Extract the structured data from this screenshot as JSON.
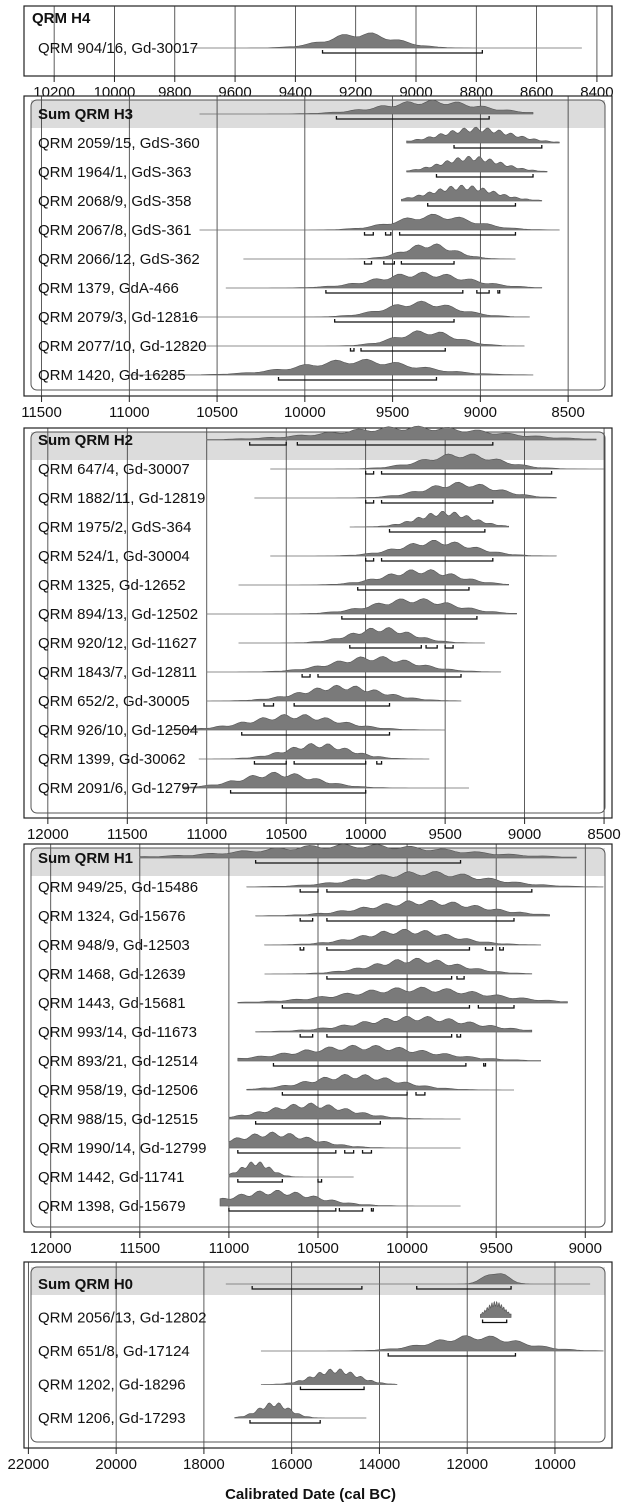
{
  "xlabel": "Calibrated Date (cal BC)",
  "chart_data": [
    {
      "type": "area",
      "title": "QRM H4",
      "xlim": [
        10300,
        8350
      ],
      "x_ticks": [
        10200,
        10000,
        9800,
        9600,
        9400,
        9200,
        9000,
        8800,
        8600,
        8400
      ],
      "rows": [
        {
          "label": "QRM 904/16, Gd-30017",
          "peak": 9180,
          "width": 110,
          "tail": [
            9750,
            8450
          ],
          "ranges": [
            [
              9310,
              8780
            ]
          ],
          "sum": false
        }
      ]
    },
    {
      "type": "area",
      "title": "Sum QRM H3",
      "xlim": [
        11600,
        8250
      ],
      "x_ticks": [
        11500,
        11000,
        10500,
        10000,
        9500,
        9000,
        8500
      ],
      "rows": [
        {
          "label": "Sum QRM H3",
          "peak": 9280,
          "width": 280,
          "tail": [
            10600,
            8700
          ],
          "ranges": [
            [
              9820,
              8950
            ]
          ],
          "sum": true
        },
        {
          "label": "QRM 2059/15, GdS-360",
          "peak": 9020,
          "width": 200,
          "tail": [
            9420,
            8550
          ],
          "ranges": [
            [
              9150,
              8650
            ]
          ],
          "sum": false
        },
        {
          "label": "QRM 1964/1, GdS-363",
          "peak": 9050,
          "width": 170,
          "tail": [
            9420,
            8620
          ],
          "ranges": [
            [
              9250,
              8700
            ]
          ],
          "sum": false
        },
        {
          "label": "QRM 2068/9, GdS-358",
          "peak": 9100,
          "width": 180,
          "tail": [
            9450,
            8650
          ],
          "ranges": [
            [
              9300,
              8800
            ]
          ],
          "sum": false
        },
        {
          "label": "QRM 2067/8, GdS-361",
          "peak": 9260,
          "width": 220,
          "tail": [
            10600,
            8550
          ],
          "ranges": [
            [
              9660,
              9610
            ],
            [
              9540,
              9510
            ],
            [
              9460,
              8800
            ]
          ],
          "sum": false
        },
        {
          "label": "QRM 2066/12, GdS-362",
          "peak": 9290,
          "width": 140,
          "tail": [
            10350,
            8800
          ],
          "ranges": [
            [
              9660,
              9620
            ],
            [
              9550,
              9490
            ],
            [
              9450,
              9150
            ]
          ],
          "sum": false
        },
        {
          "label": "QRM 1379, GdA-466",
          "peak": 9330,
          "width": 260,
          "tail": [
            10450,
            8650
          ],
          "ranges": [
            [
              9880,
              9100
            ],
            [
              9020,
              8950
            ],
            [
              8900,
              8890
            ]
          ],
          "sum": false
        },
        {
          "label": "QRM 2079/3, Gd-12816",
          "peak": 9340,
          "width": 200,
          "tail": [
            10700,
            8720
          ],
          "ranges": [
            [
              9830,
              9150
            ]
          ],
          "sum": false
        },
        {
          "label": "QRM 2077/10, Gd-12820",
          "peak": 9310,
          "width": 170,
          "tail": [
            10650,
            8750
          ],
          "ranges": [
            [
              9740,
              9720
            ],
            [
              9680,
              9200
            ]
          ],
          "sum": false
        },
        {
          "label": "QRM 1420, Gd-16285",
          "peak": 9700,
          "width": 330,
          "tail": [
            11000,
            8700
          ],
          "ranges": [
            [
              10150,
              9250
            ]
          ],
          "sum": false
        }
      ]
    },
    {
      "type": "area",
      "title": "Sum QRM H2",
      "xlim": [
        12150,
        8450
      ],
      "x_ticks": [
        12000,
        11500,
        11000,
        10500,
        10000,
        9500,
        9000,
        8500
      ],
      "rows": [
        {
          "label": "Sum QRM H2",
          "peak": 9700,
          "width": 500,
          "tail": [
            11000,
            8550
          ],
          "ranges": [
            [
              10730,
              10500
            ],
            [
              10430,
              9200
            ]
          ],
          "sum": true
        },
        {
          "label": "QRM 647/4, Gd-30007",
          "peak": 9400,
          "width": 240,
          "tail": [
            10600,
            8500
          ],
          "ranges": [
            [
              10000,
              9950
            ],
            [
              9900,
              8830
            ]
          ],
          "sum": false
        },
        {
          "label": "QRM 1882/11, Gd-12819",
          "peak": 9400,
          "width": 230,
          "tail": [
            10700,
            8800
          ],
          "ranges": [
            [
              10000,
              9950
            ],
            [
              9900,
              9200
            ]
          ],
          "sum": false
        },
        {
          "label": "QRM 1975/2, GdS-364",
          "peak": 9500,
          "width": 170,
          "tail": [
            10100,
            9100
          ],
          "ranges": [
            [
              9850,
              9250
            ]
          ],
          "sum": false
        },
        {
          "label": "QRM 524/1, Gd-30004",
          "peak": 9550,
          "width": 230,
          "tail": [
            10600,
            8800
          ],
          "ranges": [
            [
              10000,
              9950
            ],
            [
              9900,
              9200
            ]
          ],
          "sum": false
        },
        {
          "label": "QRM 1325, Gd-12652",
          "peak": 9650,
          "width": 230,
          "tail": [
            10800,
            9100
          ],
          "ranges": [
            [
              10050,
              9350
            ]
          ],
          "sum": false
        },
        {
          "label": "QRM 894/13, Gd-12502",
          "peak": 9700,
          "width": 260,
          "tail": [
            11000,
            9050
          ],
          "ranges": [
            [
              10150,
              9300
            ]
          ],
          "sum": false
        },
        {
          "label": "QRM 920/12, Gd-11627",
          "peak": 9900,
          "width": 190,
          "tail": [
            10800,
            9250
          ],
          "ranges": [
            [
              10100,
              9650
            ],
            [
              9620,
              9550
            ],
            [
              9500,
              9450
            ]
          ],
          "sum": false
        },
        {
          "label": "QRM 1843/7, Gd-12811",
          "peak": 9950,
          "width": 260,
          "tail": [
            11000,
            9150
          ],
          "ranges": [
            [
              10400,
              10350
            ],
            [
              10300,
              9400
            ]
          ],
          "sum": false
        },
        {
          "label": "QRM 652/2, Gd-30005",
          "peak": 10150,
          "width": 250,
          "tail": [
            11000,
            9400
          ],
          "ranges": [
            [
              10640,
              10580
            ],
            [
              10450,
              9850
            ]
          ],
          "sum": false
        },
        {
          "label": "QRM 926/10, Gd-12504",
          "peak": 10450,
          "width": 280,
          "tail": [
            11250,
            9500
          ],
          "ranges": [
            [
              10780,
              9850
            ]
          ],
          "sum": false
        },
        {
          "label": "QRM 1399, Gd-30062",
          "peak": 10300,
          "width": 200,
          "tail": [
            11050,
            9600
          ],
          "ranges": [
            [
              10700,
              10500
            ],
            [
              10450,
              10000
            ],
            [
              9930,
              9900
            ]
          ],
          "sum": false
        },
        {
          "label": "QRM 2091/6, Gd-12797",
          "peak": 10550,
          "width": 240,
          "tail": [
            11150,
            9350
          ],
          "ranges": [
            [
              10850,
              10000
            ]
          ],
          "sum": false
        }
      ]
    },
    {
      "type": "area",
      "title": "Sum QRM H1",
      "xlim": [
        12150,
        8850
      ],
      "x_ticks": [
        12000,
        11500,
        11000,
        10500,
        10000,
        9500,
        9000
      ],
      "rows": [
        {
          "label": "Sum QRM H1",
          "peak": 10300,
          "width": 550,
          "tail": [
            11500,
            9050
          ],
          "ranges": [
            [
              10850,
              9700
            ]
          ],
          "sum": true
        },
        {
          "label": "QRM 949/25, Gd-15486",
          "peak": 9900,
          "width": 340,
          "tail": [
            10900,
            8900
          ],
          "ranges": [
            [
              10600,
              10500
            ],
            [
              10450,
              9300
            ]
          ],
          "sum": false
        },
        {
          "label": "QRM 1324, Gd-15676",
          "peak": 9900,
          "width": 320,
          "tail": [
            10850,
            9200
          ],
          "ranges": [
            [
              10600,
              10530
            ],
            [
              10450,
              9400
            ]
          ],
          "sum": false
        },
        {
          "label": "QRM 948/9, Gd-12503",
          "peak": 10000,
          "width": 250,
          "tail": [
            10800,
            9250
          ],
          "ranges": [
            [
              10600,
              10580
            ],
            [
              10450,
              9650
            ],
            [
              9560,
              9520
            ],
            [
              9480,
              9460
            ]
          ],
          "sum": false
        },
        {
          "label": "QRM 1468, Gd-12639",
          "peak": 9950,
          "width": 240,
          "tail": [
            10800,
            9300
          ],
          "ranges": [
            [
              10450,
              9750
            ],
            [
              9720,
              9680
            ]
          ],
          "sum": false
        },
        {
          "label": "QRM 1443, Gd-15681",
          "peak": 9950,
          "width": 400,
          "tail": [
            10950,
            9100
          ],
          "ranges": [
            [
              10700,
              9650
            ],
            [
              9600,
              9400
            ]
          ],
          "sum": false
        },
        {
          "label": "QRM 993/14, Gd-11673",
          "peak": 9950,
          "width": 320,
          "tail": [
            10850,
            9300
          ],
          "ranges": [
            [
              10600,
              10530
            ],
            [
              10450,
              9750
            ],
            [
              9720,
              9700
            ]
          ],
          "sum": false
        },
        {
          "label": "QRM 893/21, Gd-12514",
          "peak": 10250,
          "width": 380,
          "tail": [
            10950,
            9250
          ],
          "ranges": [
            [
              10750,
              9670
            ],
            [
              9570,
              9560
            ]
          ],
          "sum": false
        },
        {
          "label": "QRM 958/19, Gd-12506",
          "peak": 10300,
          "width": 250,
          "tail": [
            10900,
            9400
          ],
          "ranges": [
            [
              10700,
              10000
            ],
            [
              9950,
              9900
            ]
          ],
          "sum": false
        },
        {
          "label": "QRM 988/15, Gd-12515",
          "peak": 10550,
          "width": 230,
          "tail": [
            11000,
            9700
          ],
          "ranges": [
            [
              10850,
              10150
            ]
          ],
          "sum": false
        },
        {
          "label": "QRM 1990/14, Gd-12799",
          "peak": 10750,
          "width": 220,
          "tail": [
            11000,
            9700
          ],
          "ranges": [
            [
              10950,
              10400
            ],
            [
              10350,
              10300
            ],
            [
              10250,
              10200
            ]
          ],
          "sum": false
        },
        {
          "label": "QRM 1442, Gd-11741",
          "peak": 10850,
          "width": 80,
          "tail": [
            11000,
            10300
          ],
          "ranges": [
            [
              10950,
              10700
            ],
            [
              10500,
              10480
            ]
          ],
          "sum": false
        },
        {
          "label": "QRM 1398, Gd-15679",
          "peak": 10750,
          "width": 240,
          "tail": [
            11050,
            9700
          ],
          "ranges": [
            [
              11000,
              10400
            ],
            [
              10380,
              10250
            ],
            [
              10200,
              10190
            ]
          ],
          "sum": false
        }
      ]
    },
    {
      "type": "area",
      "title": "Sum QRM H0",
      "xlim": [
        22100,
        8700
      ],
      "x_ticks": [
        22000,
        20000,
        18000,
        16000,
        14000,
        12000,
        10000
      ],
      "rows": [
        {
          "label": "Sum QRM H0",
          "peak": 11350,
          "width": 250,
          "tail": [
            17500,
            9200
          ],
          "ranges": [
            [
              16900,
              14400
            ],
            [
              13150,
              11000
            ]
          ],
          "sum": true
        },
        {
          "label": "QRM 2056/13, Gd-12802",
          "peak": 11350,
          "width": 200,
          "tail": [
            11700,
            11000
          ],
          "ranges": [
            [
              11650,
              11100
            ]
          ],
          "sum": false
        },
        {
          "label": "QRM 651/8, Gd-17124",
          "peak": 11800,
          "width": 1000,
          "tail": [
            16700,
            8900
          ],
          "ranges": [
            [
              13800,
              10900
            ]
          ],
          "sum": false
        },
        {
          "label": "QRM 1202, Gd-18296",
          "peak": 15000,
          "width": 500,
          "tail": [
            16700,
            13600
          ],
          "ranges": [
            [
              15800,
              14350
            ]
          ],
          "sum": false
        },
        {
          "label": "QRM 1206, Gd-17293",
          "peak": 16400,
          "width": 350,
          "tail": [
            17300,
            14300
          ],
          "ranges": [
            [
              16950,
              15350
            ]
          ],
          "sum": false
        }
      ]
    }
  ]
}
